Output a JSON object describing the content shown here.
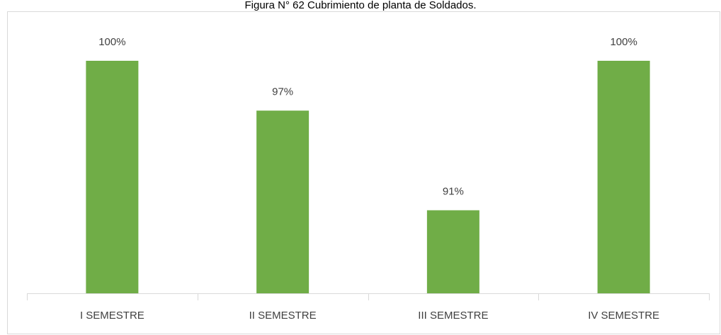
{
  "chart_data": {
    "type": "bar",
    "title": "Figura N° 62 Cubrimiento de planta de Soldados.",
    "categories": [
      "I SEMESTRE",
      "II SEMESTRE",
      "III SEMESTRE",
      "IV SEMESTRE"
    ],
    "values": [
      100,
      97,
      91,
      100
    ],
    "value_labels": [
      "100%",
      "97%",
      "91%",
      "100%"
    ],
    "color": "#70ad47",
    "ylim": [
      86,
      102
    ]
  }
}
